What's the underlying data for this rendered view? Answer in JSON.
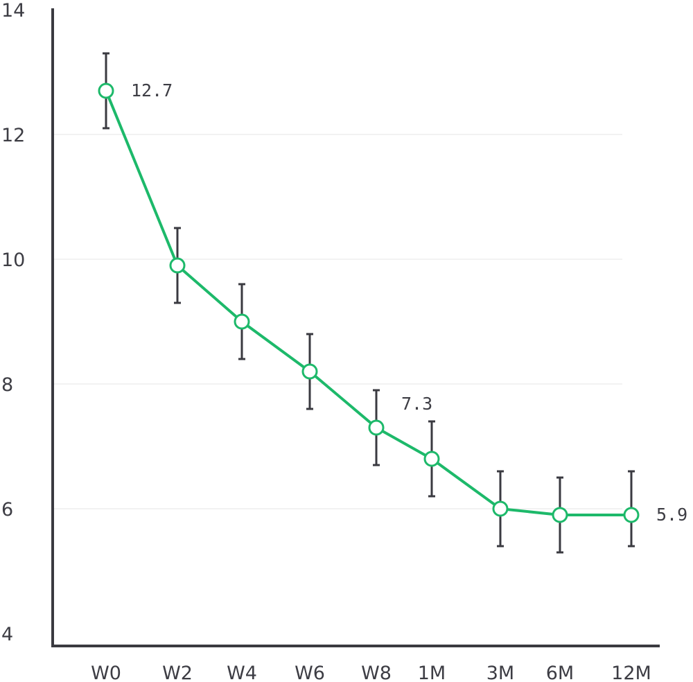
{
  "chart_data": {
    "type": "line",
    "title": "",
    "xlabel": "",
    "ylabel": "",
    "categories": [
      "W0",
      "W2",
      "W4",
      "W6",
      "W8",
      "1M",
      "3M",
      "6M",
      "12M"
    ],
    "series": [
      {
        "values": [
          12.7,
          9.9,
          9.0,
          8.2,
          7.3,
          6.8,
          6.0,
          5.9,
          5.9
        ],
        "error_low": [
          12.1,
          9.3,
          8.4,
          7.6,
          6.7,
          6.2,
          5.4,
          5.3,
          5.4
        ],
        "error_high": [
          13.3,
          10.5,
          9.6,
          8.8,
          7.9,
          7.4,
          6.6,
          6.5,
          6.6
        ],
        "color": "#1db96a"
      }
    ],
    "data_labels": [
      {
        "index": 0,
        "text": "12.7"
      },
      {
        "index": 4,
        "text": "7.3"
      },
      {
        "index": 8,
        "text": "5.9"
      }
    ],
    "ylim": [
      4,
      14
    ],
    "yticks": [
      "4",
      "6",
      "8",
      "10",
      "12",
      "14"
    ],
    "grid": true,
    "axis_color": "#3a3a40",
    "grid_color": "#e6e6e6"
  }
}
